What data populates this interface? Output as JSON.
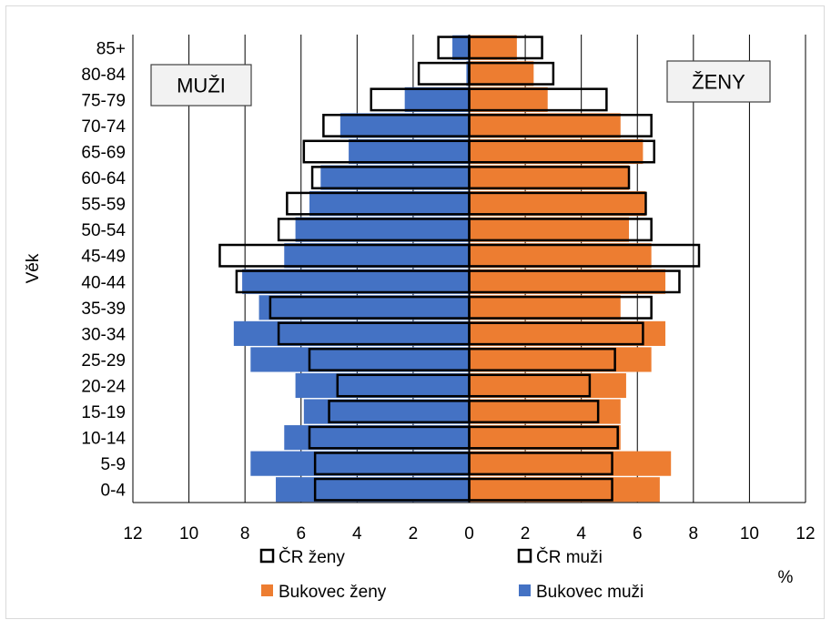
{
  "chart_data": {
    "type": "bar",
    "orientation": "horizontal",
    "layout": "population-pyramid",
    "categories": [
      "0-4",
      "5-9",
      "10-14",
      "15-19",
      "20-24",
      "25-29",
      "30-34",
      "35-39",
      "40-44",
      "45-49",
      "50-54",
      "55-59",
      "60-64",
      "65-69",
      "70-74",
      "75-79",
      "80-84",
      "85+"
    ],
    "ylabel": "Věk",
    "xlabel": "%",
    "xlim": [
      -12,
      12
    ],
    "x_ticks": [
      -12,
      -10,
      -8,
      -6,
      -4,
      -2,
      0,
      2,
      4,
      6,
      8,
      10,
      12
    ],
    "x_tick_labels": [
      "12",
      "10",
      "8",
      "6",
      "4",
      "2",
      "0",
      "2",
      "4",
      "6",
      "8",
      "10",
      "12"
    ],
    "grid": "vertical",
    "series": [
      {
        "name": "Bukovec ženy",
        "side": "right",
        "style": "filled",
        "color": "#ED7D31",
        "values": [
          6.8,
          7.2,
          5.4,
          5.4,
          5.6,
          6.5,
          7.0,
          5.4,
          7.0,
          6.5,
          5.7,
          6.3,
          5.7,
          6.2,
          5.4,
          2.8,
          2.3,
          1.7
        ]
      },
      {
        "name": "Bukovec muži",
        "side": "left",
        "style": "filled",
        "color": "#4472C4",
        "values": [
          6.9,
          7.8,
          6.6,
          5.9,
          6.2,
          7.8,
          8.4,
          7.5,
          8.1,
          6.6,
          6.2,
          5.7,
          5.3,
          4.3,
          4.6,
          2.3,
          0.1,
          0.6
        ]
      },
      {
        "name": "ČR ženy",
        "side": "left",
        "style": "outline",
        "color": "#000000",
        "values": [
          5.5,
          5.5,
          5.7,
          5.0,
          4.7,
          5.7,
          6.8,
          7.1,
          8.3,
          8.9,
          6.8,
          6.5,
          5.6,
          5.9,
          5.2,
          3.5,
          1.8,
          1.1
        ]
      },
      {
        "name": "ČR muži",
        "side": "right",
        "style": "outline",
        "color": "#000000",
        "values": [
          5.1,
          5.1,
          5.3,
          4.6,
          4.3,
          5.2,
          6.2,
          6.5,
          7.5,
          8.2,
          6.5,
          6.3,
          5.7,
          6.6,
          6.5,
          4.9,
          3.0,
          2.6
        ]
      }
    ],
    "annotations": [
      {
        "text": "MUŽI",
        "placement": "top-left"
      },
      {
        "text": "ŽENY",
        "placement": "top-right"
      }
    ],
    "legend": {
      "placement": "bottom",
      "entries": [
        "ČR ženy",
        "ČR muži",
        "Bukovec ženy",
        "Bukovec muži"
      ]
    },
    "colors": {
      "orange": "#ED7D31",
      "blue": "#4472C4",
      "outline": "#000000",
      "grid": "#000000"
    }
  }
}
